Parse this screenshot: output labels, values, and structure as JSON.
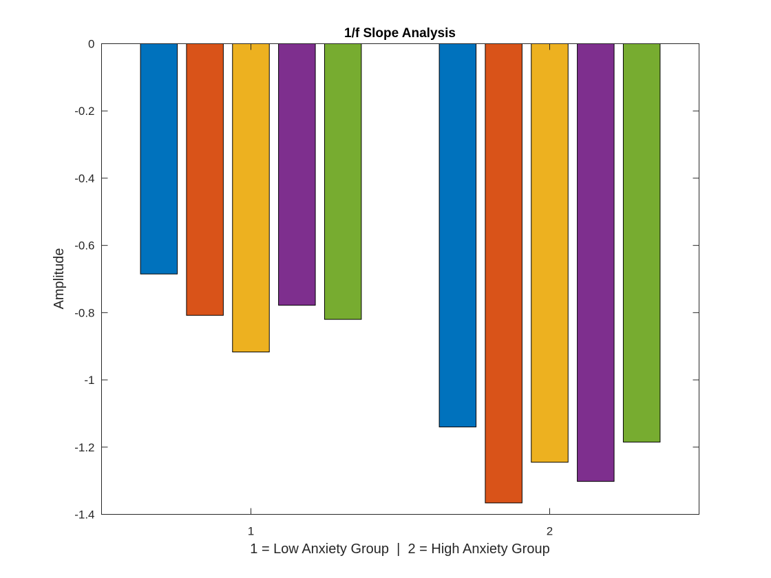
{
  "chart_data": {
    "type": "bar",
    "title": "1/f Slope Analysis",
    "xlabel": "1 = Low Anxiety Group  |  2 = High Anxiety Group",
    "ylabel": "Amplitude",
    "categories": [
      "1",
      "2"
    ],
    "ylim": [
      -1.4,
      0
    ],
    "yticks": [
      0,
      -0.2,
      -0.4,
      -0.6,
      -0.8,
      -1,
      -1.2,
      -1.4
    ],
    "ytick_labels": [
      "0",
      "-0.2",
      "-0.4",
      "-0.6",
      "-0.8",
      "-1",
      "-1.2",
      "-1.4"
    ],
    "grid": false,
    "series": [
      {
        "color": "#0072BD",
        "values": [
          -0.685,
          -1.14
        ]
      },
      {
        "color": "#D95319",
        "values": [
          -0.808,
          -1.366
        ]
      },
      {
        "color": "#EDB120",
        "values": [
          -0.917,
          -1.245
        ]
      },
      {
        "color": "#7E2F8E",
        "values": [
          -0.778,
          -1.302
        ]
      },
      {
        "color": "#77AC30",
        "values": [
          -0.82,
          -1.185
        ]
      }
    ]
  }
}
